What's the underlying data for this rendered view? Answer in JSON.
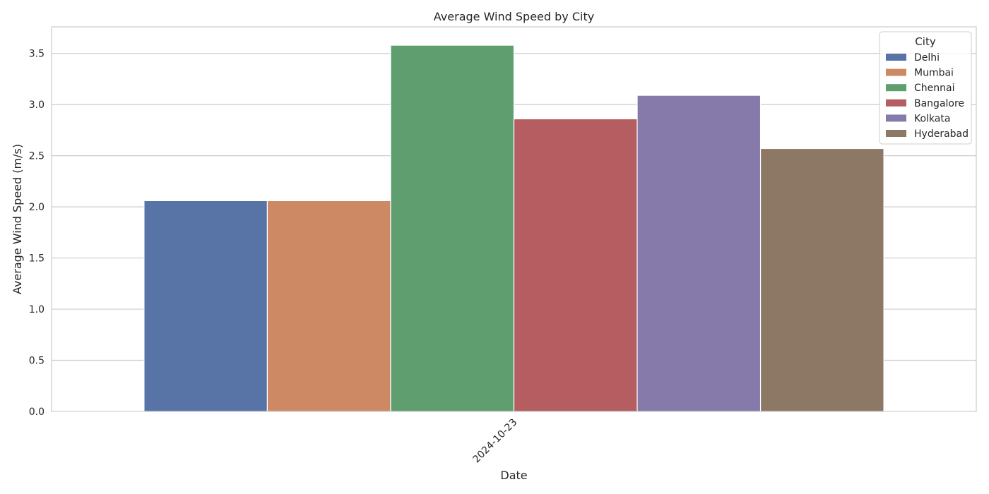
{
  "chart_data": {
    "type": "bar",
    "title": "Average Wind Speed by City",
    "xlabel": "Date",
    "ylabel": "Average Wind Speed (m/s)",
    "categories": [
      "2024-10-23"
    ],
    "series": [
      {
        "name": "Delhi",
        "values": [
          2.06
        ],
        "color": "#5874a6"
      },
      {
        "name": "Mumbai",
        "values": [
          2.06
        ],
        "color": "#cd8963"
      },
      {
        "name": "Chennai",
        "values": [
          3.58
        ],
        "color": "#5f9e6e"
      },
      {
        "name": "Bangalore",
        "values": [
          2.86
        ],
        "color": "#b55d60"
      },
      {
        "name": "Kolkata",
        "values": [
          3.09
        ],
        "color": "#867aab"
      },
      {
        "name": "Hyderabad",
        "values": [
          2.57
        ],
        "color": "#8d7866"
      }
    ],
    "yticks": [
      "0.0",
      "0.5",
      "1.0",
      "1.5",
      "2.0",
      "2.5",
      "3.0",
      "3.5"
    ],
    "ylim": [
      0,
      3.76
    ],
    "grid": true,
    "legend": {
      "title": "City",
      "placement": "top-right"
    }
  }
}
